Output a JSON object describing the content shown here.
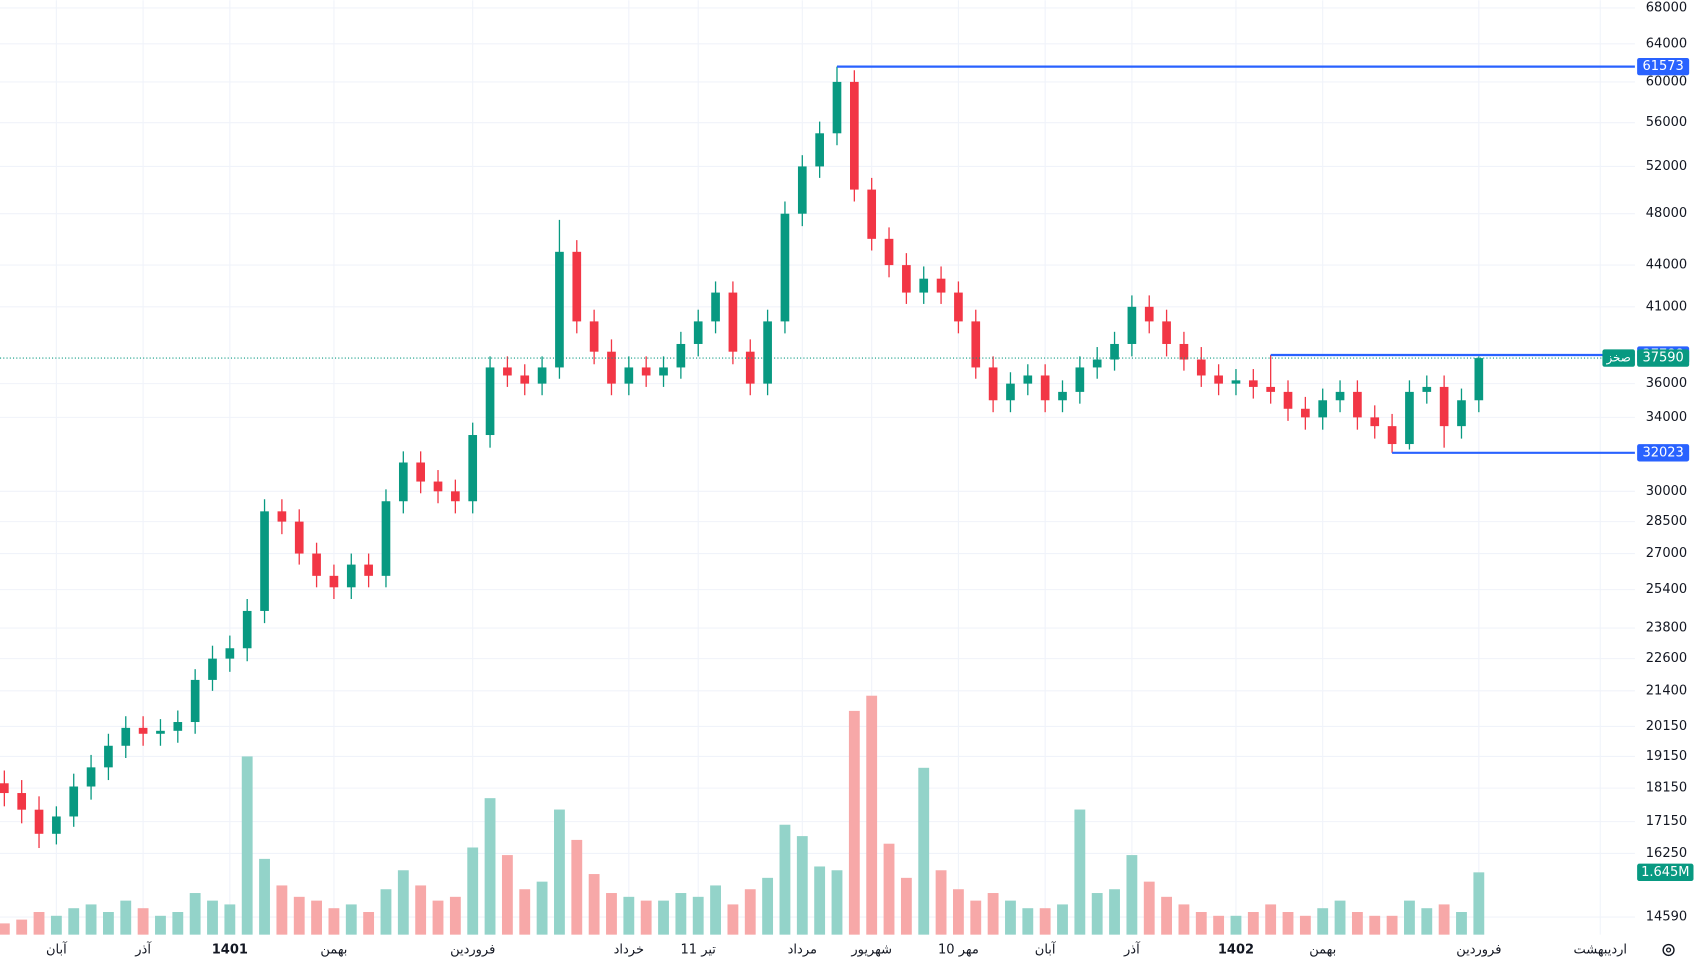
{
  "chart_data": {
    "type": "candlestick",
    "ticker": "صخز",
    "log_scale": true,
    "grid": true,
    "up_color": "#089981",
    "down_color": "#f23645",
    "volume_up_color": "#93d3c9",
    "volume_down_color": "#f7a8a8",
    "line_color": "#2962ff",
    "ylim": [
      14160,
      68900
    ],
    "yticks": [
      14590,
      16250,
      17150,
      18150,
      19150,
      20150,
      21400,
      22600,
      23800,
      25400,
      27000,
      28500,
      30000,
      34000,
      36000,
      41000,
      44000,
      48000,
      52000,
      56000,
      60000,
      64000,
      68000
    ],
    "xlim": [
      -0.25,
      94
    ],
    "xticks": [
      {
        "value": 3,
        "label": "آبان"
      },
      {
        "value": 8,
        "label": "آذر"
      },
      {
        "value": 13,
        "label": "1401"
      },
      {
        "value": 19,
        "label": "بهمن"
      },
      {
        "value": 27,
        "label": "فروردین"
      },
      {
        "value": 36,
        "label": "خرداد"
      },
      {
        "value": 40,
        "label": "11 تیر"
      },
      {
        "value": 46,
        "label": "مرداد"
      },
      {
        "value": 50,
        "label": "شهریور"
      },
      {
        "value": 55,
        "label": "10 مهر"
      },
      {
        "value": 60,
        "label": "آبان"
      },
      {
        "value": 65,
        "label": "آذر"
      },
      {
        "value": 71,
        "label": "1402"
      },
      {
        "value": 76,
        "label": "بهمن"
      },
      {
        "value": 85,
        "label": "فروردین"
      },
      {
        "value": 92,
        "label": "اردیبهشت"
      }
    ],
    "open": [
      18300,
      18000,
      17500,
      16800,
      17300,
      18200,
      18800,
      19500,
      20100,
      19900,
      20000,
      20300,
      21800,
      22600,
      23000,
      24500,
      29000,
      28500,
      27000,
      26000,
      25500,
      26500,
      26000,
      29500,
      31500,
      30500,
      30000,
      29500,
      33000,
      37000,
      36500,
      36000,
      37000,
      45000,
      40000,
      38000,
      36000,
      37000,
      36500,
      37000,
      38500,
      40000,
      42000,
      38000,
      36000,
      40000,
      48000,
      52000,
      55000,
      60000,
      50000,
      46000,
      44000,
      42000,
      43000,
      42000,
      40000,
      37000,
      35000,
      36000,
      36500,
      35000,
      35500,
      37000,
      37500,
      38500,
      41000,
      40000,
      38500,
      37500,
      36500,
      36000,
      36200,
      35800,
      35500,
      34500,
      34000,
      35000,
      35500,
      34000,
      33500,
      32500,
      35500,
      35800,
      33500,
      35000
    ],
    "high": [
      18700,
      18400,
      17900,
      17600,
      18600,
      19200,
      19900,
      20500,
      20500,
      20400,
      20700,
      22200,
      23100,
      23500,
      25000,
      29600,
      29600,
      29100,
      27500,
      26500,
      27000,
      27000,
      30100,
      32100,
      32100,
      31100,
      30600,
      33700,
      37700,
      37700,
      37200,
      37700,
      47500,
      45900,
      40800,
      38800,
      37700,
      37700,
      37700,
      39300,
      40800,
      42800,
      42800,
      38800,
      40800,
      49000,
      53000,
      56100,
      61573,
      61200,
      51000,
      46900,
      44900,
      43900,
      43900,
      42800,
      40800,
      37700,
      36700,
      37200,
      37200,
      36200,
      37700,
      38300,
      39300,
      41800,
      41800,
      40800,
      39300,
      38300,
      37200,
      36900,
      36900,
      37788,
      36200,
      35200,
      35700,
      36200,
      36200,
      34700,
      34200,
      36200,
      36500,
      36500,
      35700,
      37700
    ],
    "low": [
      17600,
      17100,
      16400,
      16500,
      17000,
      17800,
      18400,
      19100,
      19500,
      19500,
      19600,
      19900,
      21400,
      22100,
      22500,
      24000,
      27900,
      26500,
      25500,
      25000,
      25000,
      25500,
      25500,
      28900,
      29900,
      29400,
      28900,
      28900,
      32300,
      35800,
      35300,
      35300,
      36300,
      39200,
      37200,
      35300,
      35300,
      35800,
      35800,
      36300,
      37700,
      39200,
      37200,
      35300,
      35300,
      39200,
      47000,
      51000,
      53900,
      49000,
      45100,
      43100,
      41200,
      41200,
      41200,
      39200,
      36300,
      34300,
      34300,
      35300,
      34300,
      34300,
      34800,
      36300,
      36800,
      37700,
      39200,
      37700,
      36800,
      35800,
      35300,
      35300,
      35100,
      34800,
      33800,
      33300,
      33300,
      34300,
      33300,
      32800,
      32023,
      32200,
      34800,
      32300,
      32800,
      34300
    ],
    "close": [
      18000,
      17500,
      16800,
      17300,
      18200,
      18800,
      19500,
      20100,
      19900,
      20000,
      20300,
      21800,
      22600,
      23000,
      24500,
      29000,
      28500,
      27000,
      26000,
      25500,
      26500,
      26000,
      29500,
      31500,
      30500,
      30000,
      29500,
      33000,
      37000,
      36500,
      36000,
      37000,
      45000,
      40000,
      38000,
      36000,
      37000,
      36500,
      37000,
      38500,
      40000,
      42000,
      38000,
      36000,
      40000,
      48000,
      52000,
      55000,
      60000,
      50000,
      46000,
      44000,
      42000,
      43000,
      42000,
      40000,
      37000,
      35000,
      36000,
      36500,
      35000,
      35500,
      37000,
      37500,
      38500,
      41000,
      40000,
      38500,
      37500,
      36500,
      36000,
      36200,
      35800,
      35500,
      34500,
      34000,
      35000,
      35500,
      34000,
      33500,
      32500,
      35500,
      35800,
      33500,
      35000,
      37590
    ],
    "price_lines": [
      61573,
      37788,
      32023
    ],
    "volume": {
      "vlim": [
        0,
        6800000
      ],
      "values": [
        300000,
        400000,
        600000,
        500000,
        700000,
        800000,
        600000,
        900000,
        700000,
        500000,
        600000,
        1100000,
        900000,
        800000,
        4700000,
        2000000,
        1300000,
        1000000,
        900000,
        700000,
        800000,
        600000,
        1200000,
        1700000,
        1300000,
        900000,
        1000000,
        2300000,
        3600000,
        2100000,
        1200000,
        1400000,
        3300000,
        2500000,
        1600000,
        1100000,
        1000000,
        900000,
        900000,
        1100000,
        1000000,
        1300000,
        800000,
        1200000,
        1500000,
        2900000,
        2600000,
        1800000,
        1700000,
        5900000,
        6300000,
        2400000,
        1500000,
        4400000,
        1700000,
        1200000,
        900000,
        1100000,
        900000,
        700000,
        700000,
        800000,
        3300000,
        1100000,
        1200000,
        2100000,
        1400000,
        1000000,
        800000,
        600000,
        500000,
        500000,
        600000,
        800000,
        600000,
        500000,
        700000,
        900000,
        600000,
        500000,
        500000,
        900000,
        700000,
        800000,
        600000,
        1645000
      ],
      "value_labels": [
        null,
        null,
        null,
        null,
        null,
        null,
        null,
        null,
        null,
        null,
        null,
        null,
        null,
        null,
        null,
        null,
        null,
        null,
        null,
        null,
        null,
        null,
        null,
        null,
        null,
        null,
        null,
        null,
        null,
        null,
        null,
        null,
        null,
        null,
        null,
        null,
        null,
        null,
        null,
        null,
        null,
        null,
        null,
        null,
        null,
        null,
        null,
        null,
        null,
        null,
        null,
        null,
        null,
        null,
        null,
        null,
        null,
        null,
        null,
        null,
        null,
        null,
        null,
        null,
        null,
        null,
        null,
        null,
        null,
        null,
        null,
        null,
        null,
        null,
        null,
        null,
        null,
        null,
        null,
        null,
        null,
        null,
        null,
        null,
        null,
        "1.645M"
      ]
    }
  }
}
